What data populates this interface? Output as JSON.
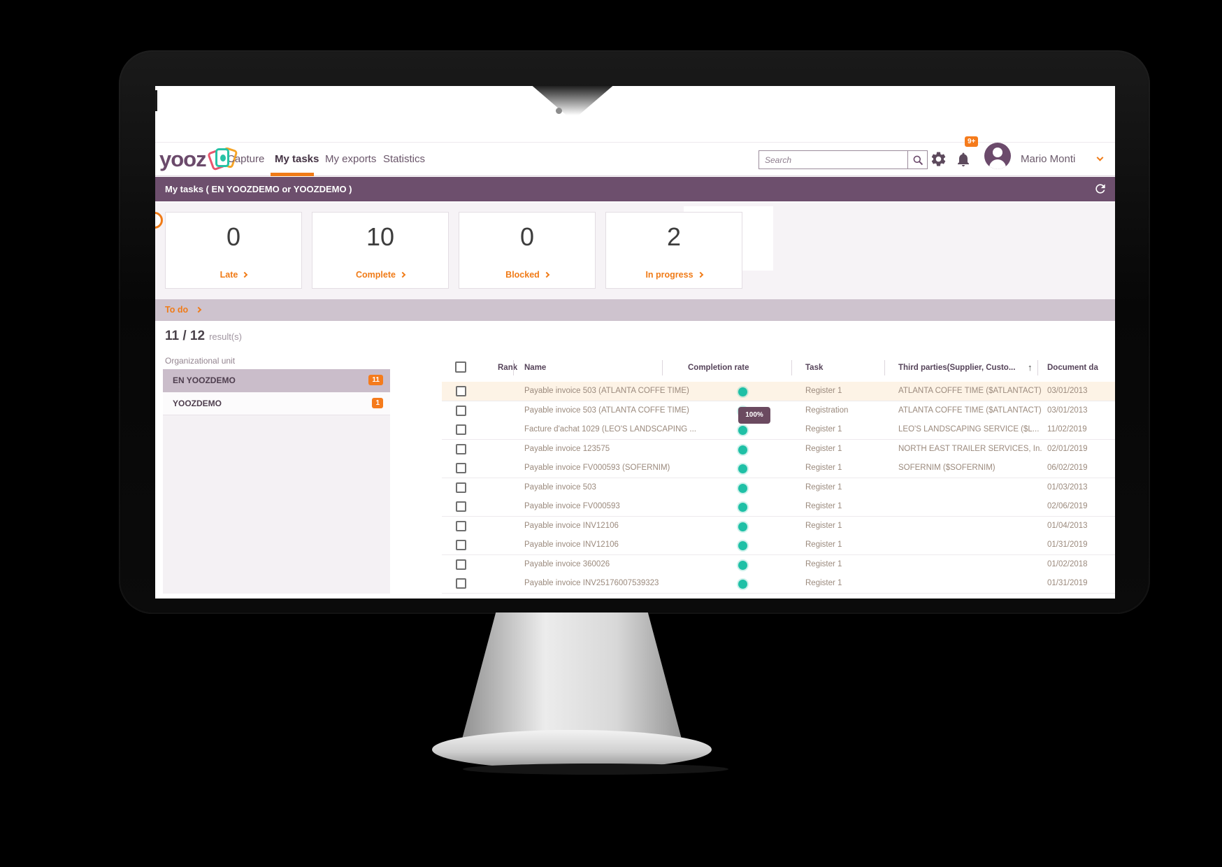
{
  "brand": {
    "logo_text": "yooz"
  },
  "nav": {
    "items": [
      "Capture",
      "My tasks",
      "My exports",
      "Statistics"
    ],
    "active": "My tasks"
  },
  "search": {
    "placeholder": "Search"
  },
  "notifications": {
    "badge": "9+"
  },
  "user": {
    "name": "Mario Monti"
  },
  "page_header": {
    "title": "My tasks ( EN YOOZDEMO or YOOZDEMO )"
  },
  "stats": [
    {
      "value": "0",
      "label": "Late"
    },
    {
      "value": "10",
      "label": "Complete"
    },
    {
      "value": "0",
      "label": "Blocked"
    },
    {
      "value": "2",
      "label": "In progress"
    }
  ],
  "todo": {
    "label": "To do"
  },
  "results": {
    "count": "11 / 12",
    "suffix": "result(s)"
  },
  "org_unit": {
    "label": "Organizational unit",
    "items": [
      {
        "name": "EN YOOZDEMO",
        "badge": "11",
        "selected": true
      },
      {
        "name": "YOOZDEMO",
        "badge": "1",
        "selected": false
      }
    ]
  },
  "table": {
    "columns": [
      "Rank",
      "Name",
      "Completion rate",
      "Task",
      "Third parties(Supplier, Custo...",
      "Document da"
    ],
    "sort_arrow": "↑",
    "tooltip": "100%",
    "rows": [
      {
        "name": "Payable invoice 503 (ATLANTA COFFE TIME)",
        "task": "Register 1",
        "third_party": "ATLANTA COFFE TIME ($ATLANTACT)",
        "date": "03/01/2013",
        "highlighted": true
      },
      {
        "name": "Payable invoice 503 (ATLANTA COFFE TIME)",
        "task": "Registration",
        "third_party": "ATLANTA COFFE TIME ($ATLANTACT)",
        "date": "03/01/2013",
        "highlighted": false
      },
      {
        "name": "Facture d'achat 1029 (LEO'S LANDSCAPING ...",
        "task": "Register 1",
        "third_party": "LEO'S LANDSCAPING SERVICE ($L...",
        "date": "11/02/2019",
        "highlighted": false
      },
      {
        "name": "Payable invoice 123575",
        "task": "Register 1",
        "third_party": "NORTH EAST TRAILER SERVICES, In...",
        "date": "02/01/2019",
        "highlighted": false
      },
      {
        "name": "Payable invoice FV000593 (SOFERNIM)",
        "task": "Register 1",
        "third_party": "SOFERNIM ($SOFERNIM)",
        "date": "06/02/2019",
        "highlighted": false
      },
      {
        "name": "Payable invoice 503",
        "task": "Register 1",
        "third_party": "",
        "date": "01/03/2013",
        "highlighted": false
      },
      {
        "name": "Payable invoice FV000593",
        "task": "Register 1",
        "third_party": "",
        "date": "02/06/2019",
        "highlighted": false
      },
      {
        "name": "Payable invoice INV12106",
        "task": "Register 1",
        "third_party": "",
        "date": "01/04/2013",
        "highlighted": false
      },
      {
        "name": "Payable invoice INV12106",
        "task": "Register 1",
        "third_party": "",
        "date": "01/31/2019",
        "highlighted": false
      },
      {
        "name": "Payable invoice 360026",
        "task": "Register 1",
        "third_party": "",
        "date": "01/02/2018",
        "highlighted": false
      },
      {
        "name": "Payable invoice INV25176007539323",
        "task": "Register 1",
        "third_party": "",
        "date": "01/31/2019",
        "highlighted": false
      }
    ]
  },
  "colors": {
    "accent_orange": "#f07b17",
    "badge_orange": "#f57b1c",
    "brand_purple": "#6b4a6b",
    "bar_purple": "#6d4f6d",
    "completion_teal": "#1fc0a6",
    "row_highlight": "#fdf3e6"
  }
}
